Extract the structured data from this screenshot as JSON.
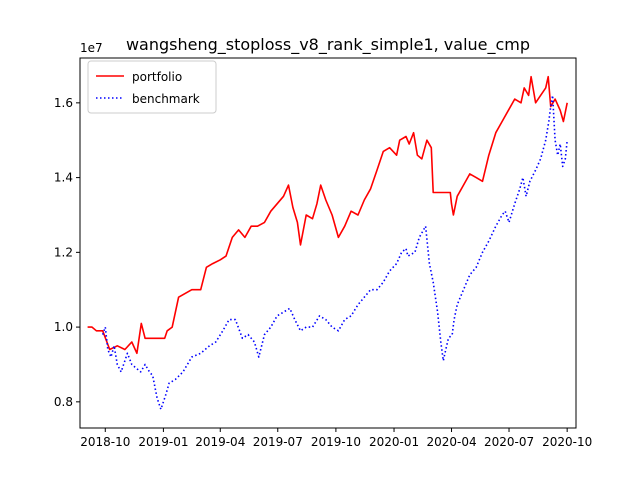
{
  "chart_data": {
    "type": "line",
    "title": "wangsheng_stoploss_v8_rank_simple1, value_cmp",
    "xlabel": "",
    "ylabel": "",
    "y_scale_label": "1e7",
    "xlim": [
      "2018-08-22",
      "2020-10-15"
    ],
    "ylim": [
      0.73,
      1.72
    ],
    "x_ticks": [
      "2018-10",
      "2019-01",
      "2019-04",
      "2019-07",
      "2019-10",
      "2020-01",
      "2020-04",
      "2020-07",
      "2020-10"
    ],
    "y_ticks": [
      0.8,
      1.0,
      1.2,
      1.4,
      1.6
    ],
    "y_tick_labels": [
      "0.8",
      "1.0",
      "1.2",
      "1.4",
      "1.6"
    ],
    "grid": false,
    "legend_position": "upper-left",
    "series": [
      {
        "name": "portfolio",
        "color": "#ff0000",
        "style": "solid",
        "points": [
          [
            "2018-09-03",
            1.0
          ],
          [
            "2018-09-10",
            1.0
          ],
          [
            "2018-09-17",
            0.99
          ],
          [
            "2018-09-27",
            0.99
          ],
          [
            "2018-10-08",
            0.94
          ],
          [
            "2018-10-20",
            0.95
          ],
          [
            "2018-11-01",
            0.94
          ],
          [
            "2018-11-12",
            0.96
          ],
          [
            "2018-11-20",
            0.93
          ],
          [
            "2018-11-27",
            1.01
          ],
          [
            "2018-12-03",
            0.97
          ],
          [
            "2018-12-12",
            0.97
          ],
          [
            "2019-01-03",
            0.97
          ],
          [
            "2019-01-07",
            0.99
          ],
          [
            "2019-01-15",
            1.0
          ],
          [
            "2019-01-25",
            1.08
          ],
          [
            "2019-02-15",
            1.1
          ],
          [
            "2019-03-01",
            1.1
          ],
          [
            "2019-03-10",
            1.16
          ],
          [
            "2019-03-20",
            1.17
          ],
          [
            "2019-04-01",
            1.18
          ],
          [
            "2019-04-10",
            1.19
          ],
          [
            "2019-04-20",
            1.24
          ],
          [
            "2019-04-30",
            1.26
          ],
          [
            "2019-05-10",
            1.24
          ],
          [
            "2019-05-20",
            1.27
          ],
          [
            "2019-05-30",
            1.27
          ],
          [
            "2019-06-10",
            1.28
          ],
          [
            "2019-06-20",
            1.31
          ],
          [
            "2019-06-30",
            1.33
          ],
          [
            "2019-07-10",
            1.35
          ],
          [
            "2019-07-18",
            1.38
          ],
          [
            "2019-07-25",
            1.32
          ],
          [
            "2019-08-01",
            1.28
          ],
          [
            "2019-08-06",
            1.22
          ],
          [
            "2019-08-15",
            1.3
          ],
          [
            "2019-08-25",
            1.29
          ],
          [
            "2019-09-01",
            1.33
          ],
          [
            "2019-09-07",
            1.38
          ],
          [
            "2019-09-15",
            1.34
          ],
          [
            "2019-09-25",
            1.3
          ],
          [
            "2019-10-05",
            1.24
          ],
          [
            "2019-10-15",
            1.27
          ],
          [
            "2019-10-25",
            1.31
          ],
          [
            "2019-11-05",
            1.3
          ],
          [
            "2019-11-15",
            1.34
          ],
          [
            "2019-11-25",
            1.37
          ],
          [
            "2019-12-05",
            1.42
          ],
          [
            "2019-12-15",
            1.47
          ],
          [
            "2019-12-25",
            1.48
          ],
          [
            "2020-01-05",
            1.46
          ],
          [
            "2020-01-10",
            1.5
          ],
          [
            "2020-01-20",
            1.51
          ],
          [
            "2020-01-25",
            1.49
          ],
          [
            "2020-02-01",
            1.52
          ],
          [
            "2020-02-07",
            1.46
          ],
          [
            "2020-02-14",
            1.45
          ],
          [
            "2020-02-22",
            1.5
          ],
          [
            "2020-02-29",
            1.48
          ],
          [
            "2020-03-03",
            1.36
          ],
          [
            "2020-03-15",
            1.36
          ],
          [
            "2020-03-30",
            1.36
          ],
          [
            "2020-04-01",
            1.33
          ],
          [
            "2020-04-04",
            1.3
          ],
          [
            "2020-04-10",
            1.35
          ],
          [
            "2020-04-20",
            1.38
          ],
          [
            "2020-04-30",
            1.41
          ],
          [
            "2020-05-10",
            1.4
          ],
          [
            "2020-05-20",
            1.39
          ],
          [
            "2020-05-30",
            1.46
          ],
          [
            "2020-06-10",
            1.52
          ],
          [
            "2020-06-20",
            1.55
          ],
          [
            "2020-06-30",
            1.58
          ],
          [
            "2020-07-10",
            1.61
          ],
          [
            "2020-07-20",
            1.6
          ],
          [
            "2020-07-25",
            1.64
          ],
          [
            "2020-08-01",
            1.62
          ],
          [
            "2020-08-05",
            1.67
          ],
          [
            "2020-08-12",
            1.6
          ],
          [
            "2020-08-20",
            1.62
          ],
          [
            "2020-08-28",
            1.64
          ],
          [
            "2020-09-01",
            1.67
          ],
          [
            "2020-09-05",
            1.59
          ],
          [
            "2020-09-12",
            1.61
          ],
          [
            "2020-09-20",
            1.58
          ],
          [
            "2020-09-25",
            1.55
          ],
          [
            "2020-10-01",
            1.6
          ]
        ]
      },
      {
        "name": "benchmark",
        "color": "#0000ff",
        "style": "dotted",
        "points": [
          [
            "2018-09-27",
            0.98
          ],
          [
            "2018-10-01",
            1.0
          ],
          [
            "2018-10-05",
            0.94
          ],
          [
            "2018-10-10",
            0.92
          ],
          [
            "2018-10-15",
            0.95
          ],
          [
            "2018-10-20",
            0.9
          ],
          [
            "2018-10-26",
            0.88
          ],
          [
            "2018-11-01",
            0.91
          ],
          [
            "2018-11-05",
            0.93
          ],
          [
            "2018-11-12",
            0.9
          ],
          [
            "2018-11-19",
            0.89
          ],
          [
            "2018-11-26",
            0.88
          ],
          [
            "2018-12-03",
            0.9
          ],
          [
            "2018-12-10",
            0.88
          ],
          [
            "2018-12-15",
            0.87
          ],
          [
            "2018-12-22",
            0.81
          ],
          [
            "2018-12-28",
            0.78
          ],
          [
            "2019-01-05",
            0.82
          ],
          [
            "2019-01-10",
            0.85
          ],
          [
            "2019-01-20",
            0.86
          ],
          [
            "2019-02-01",
            0.88
          ],
          [
            "2019-02-15",
            0.92
          ],
          [
            "2019-03-01",
            0.93
          ],
          [
            "2019-03-15",
            0.95
          ],
          [
            "2019-03-25",
            0.96
          ],
          [
            "2019-04-05",
            0.99
          ],
          [
            "2019-04-15",
            1.02
          ],
          [
            "2019-04-25",
            1.02
          ],
          [
            "2019-05-06",
            0.97
          ],
          [
            "2019-05-15",
            0.98
          ],
          [
            "2019-05-25",
            0.96
          ],
          [
            "2019-06-01",
            0.92
          ],
          [
            "2019-06-10",
            0.98
          ],
          [
            "2019-06-20",
            1.0
          ],
          [
            "2019-06-30",
            1.03
          ],
          [
            "2019-07-10",
            1.04
          ],
          [
            "2019-07-20",
            1.05
          ],
          [
            "2019-07-28",
            1.02
          ],
          [
            "2019-08-06",
            0.99
          ],
          [
            "2019-08-15",
            1.0
          ],
          [
            "2019-08-25",
            1.0
          ],
          [
            "2019-09-05",
            1.03
          ],
          [
            "2019-09-15",
            1.02
          ],
          [
            "2019-09-25",
            1.0
          ],
          [
            "2019-10-05",
            0.99
          ],
          [
            "2019-10-15",
            1.02
          ],
          [
            "2019-10-25",
            1.03
          ],
          [
            "2019-11-05",
            1.06
          ],
          [
            "2019-11-15",
            1.08
          ],
          [
            "2019-11-25",
            1.1
          ],
          [
            "2019-12-05",
            1.1
          ],
          [
            "2019-12-15",
            1.12
          ],
          [
            "2019-12-25",
            1.15
          ],
          [
            "2020-01-05",
            1.17
          ],
          [
            "2020-01-13",
            1.2
          ],
          [
            "2020-01-20",
            1.21
          ],
          [
            "2020-01-23",
            1.19
          ],
          [
            "2020-02-03",
            1.2
          ],
          [
            "2020-02-10",
            1.24
          ],
          [
            "2020-02-20",
            1.27
          ],
          [
            "2020-02-26",
            1.17
          ],
          [
            "2020-03-03",
            1.12
          ],
          [
            "2020-03-10",
            1.04
          ],
          [
            "2020-03-15",
            0.96
          ],
          [
            "2020-03-19",
            0.91
          ],
          [
            "2020-03-23",
            0.94
          ],
          [
            "2020-03-27",
            0.97
          ],
          [
            "2020-04-02",
            0.98
          ],
          [
            "2020-04-05",
            1.02
          ],
          [
            "2020-04-10",
            1.06
          ],
          [
            "2020-04-20",
            1.1
          ],
          [
            "2020-04-30",
            1.14
          ],
          [
            "2020-05-10",
            1.16
          ],
          [
            "2020-05-20",
            1.2
          ],
          [
            "2020-05-30",
            1.23
          ],
          [
            "2020-06-10",
            1.27
          ],
          [
            "2020-06-20",
            1.3
          ],
          [
            "2020-06-25",
            1.31
          ],
          [
            "2020-07-01",
            1.28
          ],
          [
            "2020-07-10",
            1.33
          ],
          [
            "2020-07-18",
            1.37
          ],
          [
            "2020-07-23",
            1.4
          ],
          [
            "2020-07-28",
            1.35
          ],
          [
            "2020-08-03",
            1.39
          ],
          [
            "2020-08-12",
            1.42
          ],
          [
            "2020-08-20",
            1.45
          ],
          [
            "2020-08-28",
            1.5
          ],
          [
            "2020-09-02",
            1.55
          ],
          [
            "2020-09-05",
            1.59
          ],
          [
            "2020-09-08",
            1.62
          ],
          [
            "2020-09-12",
            1.5
          ],
          [
            "2020-09-16",
            1.46
          ],
          [
            "2020-09-20",
            1.49
          ],
          [
            "2020-09-24",
            1.43
          ],
          [
            "2020-09-28",
            1.45
          ],
          [
            "2020-10-01",
            1.5
          ]
        ]
      }
    ]
  }
}
